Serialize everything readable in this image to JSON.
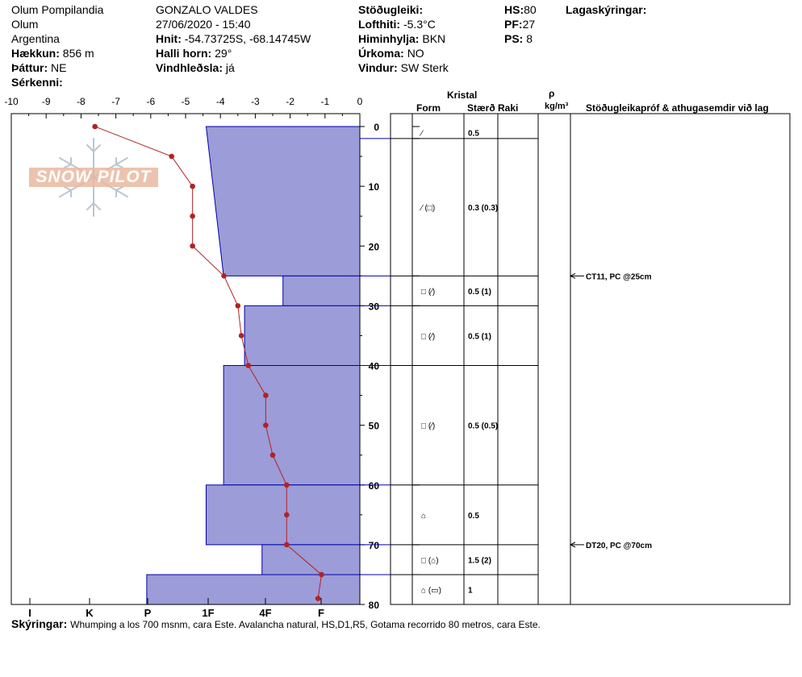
{
  "header": {
    "location": "Olum Pompilandia",
    "zone": "Olum",
    "country": "Argentina",
    "elevation_label": "Hækkun:",
    "elevation_value": "856 m",
    "aspect_label": "Þáttur:",
    "aspect_value": "NE",
    "specifics_label": "Sérkenni:",
    "observer": "GONZALO VALDES",
    "datetime": "27/06/2020 - 15:40",
    "coords_label": "Hnit:",
    "coords_value": "-54.73725S, -68.14745W",
    "slope_label": "Halli horn:",
    "slope_value": "29°",
    "wind_loading_label": "Vindhleðsla:",
    "wind_loading_value": "já",
    "stability_label": "Stöðugleiki:",
    "air_temp_label": "Lofthiti:",
    "air_temp_value": "-5.3°C",
    "sky_label": "Himinhylja:",
    "sky_value": "BKN",
    "precip_label": "Úrkoma:",
    "precip_value": "NO",
    "wind_label": "Vindur:",
    "wind_value": "SW Sterk",
    "hs_label": "HS:",
    "hs_value": "80",
    "pf_label": "PF:",
    "pf_value": "27",
    "ps_label": "PS:",
    "ps_value": "8",
    "layers_label": "Lagaskýringar:"
  },
  "watermark": {
    "text": "SNOW PILOT"
  },
  "columns": {
    "crystal": "Kristal",
    "form": "Form",
    "size": "Stærð",
    "moisture": "Raki",
    "rho": "ρ",
    "density_unit": "kg/m³",
    "stability": "Stöðugleikapróf & athugasemdir við lag"
  },
  "notes_label": "Skýringar:",
  "notes_value": "Whumping a los 700 msnm, cara Este. Avalancha natural, HS,D1,R5, Gotama recorrido 80 metros, cara Este.",
  "colors": {
    "hardness_fill": "#9c9cd8",
    "hardness_edge": "#0000aa",
    "temp_line": "#b22222"
  },
  "chart_data": {
    "type": "snow-profile",
    "temperature_axis": {
      "ticks": [
        "-10",
        "-9",
        "-8",
        "-7",
        "-6",
        "-5",
        "-4",
        "-3",
        "-2",
        "-1",
        "0"
      ],
      "range": [
        -10,
        0
      ]
    },
    "depth_axis": {
      "ticks": [
        "0",
        "10",
        "20",
        "30",
        "40",
        "50",
        "60",
        "70",
        "80"
      ],
      "range": [
        0,
        80
      ]
    },
    "hardness_axis": {
      "ticks": [
        "I",
        "K",
        "P",
        "1F",
        "4F",
        "F"
      ]
    },
    "hardness_layers": [
      {
        "top": 0,
        "bottom": 25,
        "top_hardness": 4.4,
        "bottom_hardness": 3.9
      },
      {
        "top": 25,
        "bottom": 30,
        "hardness": 2.2
      },
      {
        "top": 30,
        "bottom": 40,
        "hardness": 3.3
      },
      {
        "top": 40,
        "bottom": 60,
        "hardness": 3.9
      },
      {
        "top": 60,
        "bottom": 70,
        "hardness": 4.4
      },
      {
        "top": 70,
        "bottom": 75,
        "hardness": 2.8
      },
      {
        "top": 75,
        "bottom": 80,
        "hardness": 6.1
      }
    ],
    "temperature_profile": [
      {
        "depth": 0,
        "temp": -7.6
      },
      {
        "depth": 5,
        "temp": -5.4
      },
      {
        "depth": 10,
        "temp": -4.8
      },
      {
        "depth": 15,
        "temp": -4.8
      },
      {
        "depth": 20,
        "temp": -4.8
      },
      {
        "depth": 25,
        "temp": -3.9
      },
      {
        "depth": 30,
        "temp": -3.5
      },
      {
        "depth": 35,
        "temp": -3.4
      },
      {
        "depth": 40,
        "temp": -3.2
      },
      {
        "depth": 45,
        "temp": -2.7
      },
      {
        "depth": 50,
        "temp": -2.7
      },
      {
        "depth": 55,
        "temp": -2.5
      },
      {
        "depth": 60,
        "temp": -2.1
      },
      {
        "depth": 65,
        "temp": -2.1
      },
      {
        "depth": 70,
        "temp": -2.1
      },
      {
        "depth": 75,
        "temp": -1.1
      },
      {
        "depth": 79,
        "temp": -1.2
      }
    ],
    "layers": [
      {
        "top": 0,
        "bottom": 2,
        "form": "⁄",
        "size": "0.5"
      },
      {
        "top": 2,
        "bottom": 25,
        "form": "⁄ (□)",
        "size": "0.3 (0.3)"
      },
      {
        "top": 25,
        "bottom": 30,
        "form": "□ (⁄)",
        "size": "0.5 (1)"
      },
      {
        "top": 30,
        "bottom": 40,
        "form": "□ (⁄)",
        "size": "0.5 (1)"
      },
      {
        "top": 40,
        "bottom": 60,
        "form": "□ (⁄)",
        "size": "0.5 (0.5)"
      },
      {
        "top": 60,
        "bottom": 70,
        "form": "⌂",
        "size": "0.5"
      },
      {
        "top": 70,
        "bottom": 75,
        "form": "□ (⌂)",
        "size": "1.5 (2)"
      },
      {
        "top": 75,
        "bottom": 80,
        "form": "⌂ (▭)",
        "size": "1"
      }
    ],
    "tests": [
      {
        "depth": 25,
        "text": "CT11, PC @25cm"
      },
      {
        "depth": 70,
        "text": "DT20, PC @70cm"
      }
    ]
  }
}
